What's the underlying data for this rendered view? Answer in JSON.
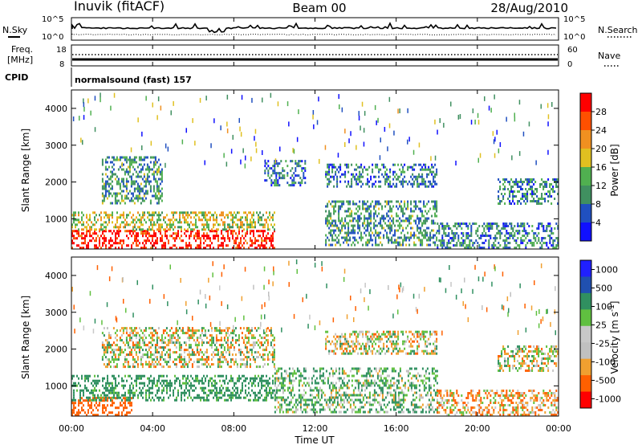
{
  "header": {
    "station": "Inuvik (fitACF)",
    "beam": "Beam 00",
    "date": "28/Aug/2010"
  },
  "noise_panel": {
    "left_label": "N.Sky",
    "right_label": "N.Search",
    "left_ticks": [
      "10^5",
      "10^0"
    ],
    "right_ticks": [
      "10^5",
      "10^0"
    ]
  },
  "freq_panel": {
    "left_label_1": "Freq.",
    "left_label_2": "[MHz]",
    "left_ticks": [
      "18",
      "8"
    ],
    "right_label": "Nave",
    "right_ticks": [
      "60",
      "0"
    ]
  },
  "cpid_panel": {
    "label": "CPID",
    "text": "normalsound (fast) 157"
  },
  "x_axis": {
    "label": "Time UT",
    "ticks": [
      "00:00",
      "04:00",
      "08:00",
      "12:00",
      "16:00",
      "20:00",
      "00:00"
    ]
  },
  "colors": {
    "power_scale": [
      "#1010ff",
      "#2050c0",
      "#409060",
      "#50b050",
      "#e0c020",
      "#f09020",
      "#ff5000",
      "#ff0000"
    ],
    "velocity_scale": [
      "#ff0000",
      "#ff6000",
      "#f0a030",
      "#c0c0c0",
      "#c8c8c8",
      "#60c040",
      "#309060",
      "#2050b0",
      "#2020ff"
    ]
  },
  "chart_data": [
    {
      "type": "heatmap",
      "title": "",
      "xlabel": "",
      "ylabel": "Slant Range [km]",
      "xlim": [
        "00:00",
        "24:00"
      ],
      "ylim": [
        180,
        4500
      ],
      "yticks": [
        "1000",
        "2000",
        "3000",
        "4000"
      ],
      "colorbar": {
        "label": "Power [dB]",
        "ticks": [
          "4",
          "8",
          "12",
          "16",
          "20",
          "24",
          "28"
        ],
        "range": [
          0,
          30
        ]
      },
      "regions": [
        {
          "t_start": 0.0,
          "t_end": 10.0,
          "range_start": 200,
          "range_end": 700,
          "value": 28
        },
        {
          "t_start": 0.0,
          "t_end": 10.0,
          "range_start": 700,
          "range_end": 1200,
          "value": 16
        },
        {
          "t_start": 1.5,
          "t_end": 4.5,
          "range_start": 1400,
          "range_end": 2700,
          "value": 10
        },
        {
          "t_start": 9.5,
          "t_end": 11.5,
          "range_start": 1900,
          "range_end": 2600,
          "value": 8
        },
        {
          "t_start": 12.5,
          "t_end": 18.0,
          "range_start": 300,
          "range_end": 1500,
          "value": 10
        },
        {
          "t_start": 12.5,
          "t_end": 18.0,
          "range_start": 1900,
          "range_end": 2500,
          "value": 8
        },
        {
          "t_start": 18.0,
          "t_end": 24.0,
          "range_start": 200,
          "range_end": 900,
          "value": 8
        },
        {
          "t_start": 21.0,
          "t_end": 24.0,
          "range_start": 1400,
          "range_end": 2100,
          "value": 9
        }
      ]
    },
    {
      "type": "heatmap",
      "title": "",
      "xlabel": "Time UT",
      "ylabel": "Slant Range [km]",
      "xlim": [
        "00:00",
        "24:00"
      ],
      "ylim": [
        180,
        4500
      ],
      "yticks": [
        "1000",
        "2000",
        "3000",
        "4000"
      ],
      "colorbar": {
        "label": "Velocity [m s^-1]",
        "ticks": [
          "1000",
          "500",
          "100",
          "25",
          "-25",
          "-100",
          "-500",
          "-1000"
        ],
        "range": [
          -1000,
          1000
        ]
      },
      "regions": [
        {
          "t_start": 0.0,
          "t_end": 3.0,
          "range_start": 200,
          "range_end": 700,
          "value": -300
        },
        {
          "t_start": 0.0,
          "t_end": 10.0,
          "range_start": 600,
          "range_end": 1300,
          "value": 200
        },
        {
          "t_start": 1.5,
          "t_end": 10.0,
          "range_start": 1500,
          "range_end": 2600,
          "value": 0
        },
        {
          "t_start": 10.0,
          "t_end": 18.0,
          "range_start": 300,
          "range_end": 1500,
          "value": 100
        },
        {
          "t_start": 12.5,
          "t_end": 18.0,
          "range_start": 1900,
          "range_end": 2500,
          "value": 0
        },
        {
          "t_start": 18.0,
          "t_end": 24.0,
          "range_start": 200,
          "range_end": 900,
          "value": -80
        },
        {
          "t_start": 21.0,
          "t_end": 24.0,
          "range_start": 1400,
          "range_end": 2100,
          "value": 0
        }
      ]
    }
  ]
}
